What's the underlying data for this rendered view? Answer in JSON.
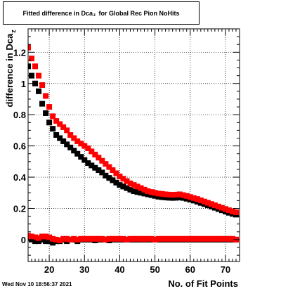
{
  "title": {
    "prefix": "Fitted difference in Dca",
    "sub": "z",
    "suffix": "for Global Rec Pion NoHits"
  },
  "footer_timestamp": "Wed Nov 10 18:56:37 2021",
  "colors": {
    "series_black": "#000000",
    "series_red": "#ff0000",
    "grid": "#000000"
  },
  "chart_data": {
    "type": "scatter",
    "title": "Fitted difference in Dca_z for Global Rec Pion NoHits",
    "xlabel": "No. of Fit Points",
    "ylabel": {
      "prefix": "difference in Dca",
      "sub": "z"
    },
    "xlim": [
      14,
      74
    ],
    "ylim": [
      -0.14,
      1.35
    ],
    "x_ticks": [
      20,
      30,
      40,
      50,
      60,
      70
    ],
    "y_ticks": [
      0,
      0.2,
      0.4,
      0.6,
      0.8,
      1,
      1.2
    ],
    "y_tick_labels": [
      "0",
      "0.2",
      "0.4",
      "0.6",
      "0.8",
      "1",
      "1.2"
    ],
    "grid": true,
    "series": [
      {
        "color": "#000000",
        "x": [
          14,
          15,
          16,
          17,
          18,
          19,
          20,
          21,
          22,
          23,
          24,
          25,
          26,
          27,
          28,
          29,
          30,
          31,
          32,
          33,
          34,
          35,
          36,
          37,
          38,
          39,
          40,
          41,
          42,
          43,
          44,
          45,
          46,
          47,
          48,
          49,
          50,
          51,
          52,
          53,
          54,
          55,
          56,
          57,
          58,
          59,
          60,
          61,
          62,
          63,
          64,
          65,
          66,
          67,
          68,
          69,
          70,
          71,
          72,
          73
        ],
        "values": [
          1.11,
          1.05,
          1.0,
          0.95,
          0.87,
          0.81,
          0.75,
          0.71,
          0.67,
          0.65,
          0.63,
          0.61,
          0.59,
          0.57,
          0.55,
          0.53,
          0.51,
          0.49,
          0.475,
          0.46,
          0.445,
          0.43,
          0.41,
          0.395,
          0.38,
          0.365,
          0.35,
          0.34,
          0.33,
          0.32,
          0.31,
          0.305,
          0.3,
          0.295,
          0.29,
          0.285,
          0.28,
          0.275,
          0.272,
          0.27,
          0.268,
          0.267,
          0.268,
          0.27,
          0.267,
          0.262,
          0.256,
          0.25,
          0.243,
          0.235,
          0.228,
          0.22,
          0.212,
          0.204,
          0.196,
          0.188,
          0.18,
          0.172,
          0.165,
          0.16
        ]
      },
      {
        "color": "#ff0000",
        "x": [
          14,
          15,
          16,
          17,
          18,
          19,
          20,
          21,
          22,
          23,
          24,
          25,
          26,
          27,
          28,
          29,
          30,
          31,
          32,
          33,
          34,
          35,
          36,
          37,
          38,
          39,
          40,
          41,
          42,
          43,
          44,
          45,
          46,
          47,
          48,
          49,
          50,
          51,
          52,
          53,
          54,
          55,
          56,
          57,
          58,
          59,
          60,
          61,
          62,
          63,
          64,
          65,
          66,
          67,
          68,
          69,
          70,
          71,
          72,
          73
        ],
        "values": [
          1.23,
          1.16,
          1.11,
          1.05,
          0.99,
          0.92,
          0.85,
          0.79,
          0.76,
          0.74,
          0.72,
          0.7,
          0.67,
          0.65,
          0.63,
          0.615,
          0.6,
          0.585,
          0.565,
          0.545,
          0.525,
          0.505,
          0.485,
          0.465,
          0.445,
          0.425,
          0.405,
          0.39,
          0.375,
          0.36,
          0.35,
          0.34,
          0.33,
          0.32,
          0.31,
          0.305,
          0.3,
          0.295,
          0.293,
          0.29,
          0.288,
          0.287,
          0.288,
          0.29,
          0.285,
          0.28,
          0.273,
          0.266,
          0.26,
          0.252,
          0.244,
          0.236,
          0.228,
          0.22,
          0.212,
          0.204,
          0.196,
          0.188,
          0.18,
          0.175
        ]
      },
      {
        "color": "#000000",
        "x": [
          14,
          15,
          16,
          17,
          18,
          19,
          20,
          21,
          22,
          23,
          24,
          25,
          26,
          27,
          28,
          29,
          30,
          31,
          32,
          33,
          34,
          35,
          36,
          37,
          38,
          39,
          40,
          41,
          42,
          43,
          44,
          45,
          46,
          47,
          48,
          49,
          50,
          51,
          52,
          53,
          54,
          55,
          56,
          57,
          58,
          59,
          60,
          61,
          62,
          63,
          64,
          65,
          66,
          67,
          68,
          69,
          70,
          71,
          72,
          73
        ],
        "values": [
          0.01,
          0.0,
          -0.01,
          -0.01,
          0.0,
          -0.01,
          -0.01,
          -0.02,
          -0.01,
          -0.01,
          0.0,
          -0.01,
          0.0,
          0.0,
          -0.01,
          0.0,
          0.0,
          0.0,
          0.0,
          -0.005,
          0.0,
          0.0,
          0.0,
          -0.005,
          0.0,
          0.0,
          0.0,
          0.0,
          0.0,
          0.0,
          0.0,
          0.0,
          0.0,
          0.0,
          0.0,
          0.0,
          0.0,
          0.0,
          0.0,
          0.0,
          0.0,
          0.0,
          0.0,
          0.0,
          0.0,
          0.0,
          0.0,
          0.0,
          0.0,
          0.0,
          0.0,
          0.0,
          0.0,
          0.0,
          0.0,
          0.0,
          0.0,
          0.0,
          0.0,
          0.0
        ]
      },
      {
        "color": "#ff0000",
        "x": [
          14,
          15,
          16,
          17,
          18,
          19,
          20,
          21,
          22,
          23,
          24,
          25,
          26,
          27,
          28,
          29,
          30,
          31,
          32,
          33,
          34,
          35,
          36,
          37,
          38,
          39,
          40,
          41,
          42,
          43,
          44,
          45,
          46,
          47,
          48,
          49,
          50,
          51,
          52,
          53,
          54,
          55,
          56,
          57,
          58,
          59,
          60,
          61,
          62,
          63,
          64,
          65,
          66,
          67,
          68,
          69,
          70,
          71,
          72,
          73
        ],
        "values": [
          0.025,
          0.02,
          0.015,
          0.01,
          0.02,
          0.02,
          0.015,
          0.005,
          0.0,
          -0.005,
          0.005,
          0.005,
          0.0,
          0.005,
          0.0,
          0.005,
          0.005,
          0.005,
          0.005,
          0.005,
          0.005,
          0.005,
          0.0,
          0.005,
          0.005,
          0.005,
          0.005,
          0.005,
          0.0,
          0.005,
          0.005,
          0.005,
          0.005,
          0.005,
          0.005,
          0.005,
          0.0,
          0.005,
          0.005,
          0.005,
          0.005,
          0.005,
          0.005,
          0.005,
          0.005,
          0.005,
          0.005,
          0.005,
          0.005,
          0.005,
          0.005,
          0.005,
          0.005,
          0.005,
          0.005,
          0.005,
          0.005,
          0.005,
          0.005,
          0.0
        ]
      }
    ]
  }
}
